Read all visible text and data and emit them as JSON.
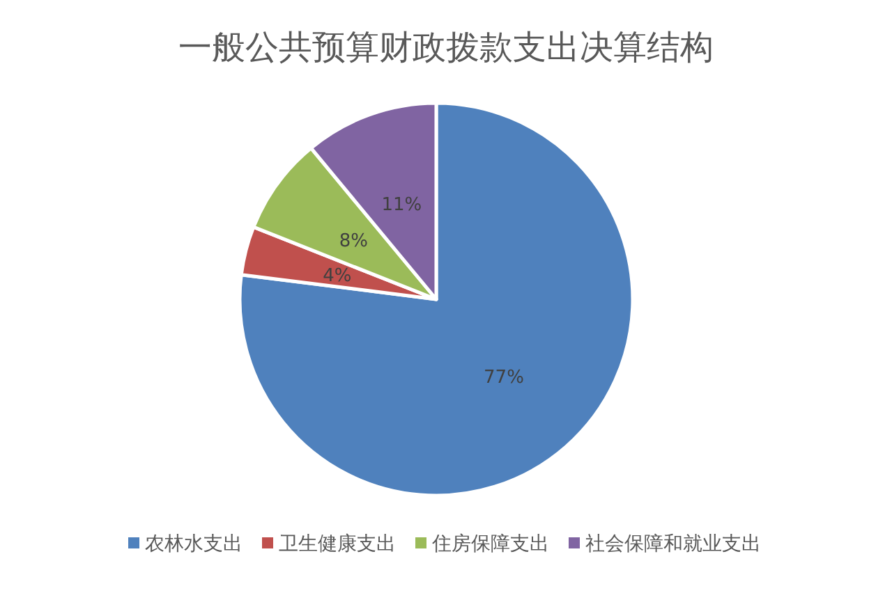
{
  "chart_data": {
    "type": "pie",
    "title": "一般公共预算财政拨款支出决算结构",
    "categories": [
      "农林水支出",
      "卫生健康支出",
      "住房保障支出",
      "社会保障和就业支出"
    ],
    "values": [
      77,
      4,
      8,
      11
    ],
    "value_labels": [
      "77%",
      "4%",
      "8%",
      "11%"
    ],
    "colors": [
      "#4f81bd",
      "#c0504d",
      "#9bbb59",
      "#8064a2"
    ],
    "legend": "bottom"
  }
}
